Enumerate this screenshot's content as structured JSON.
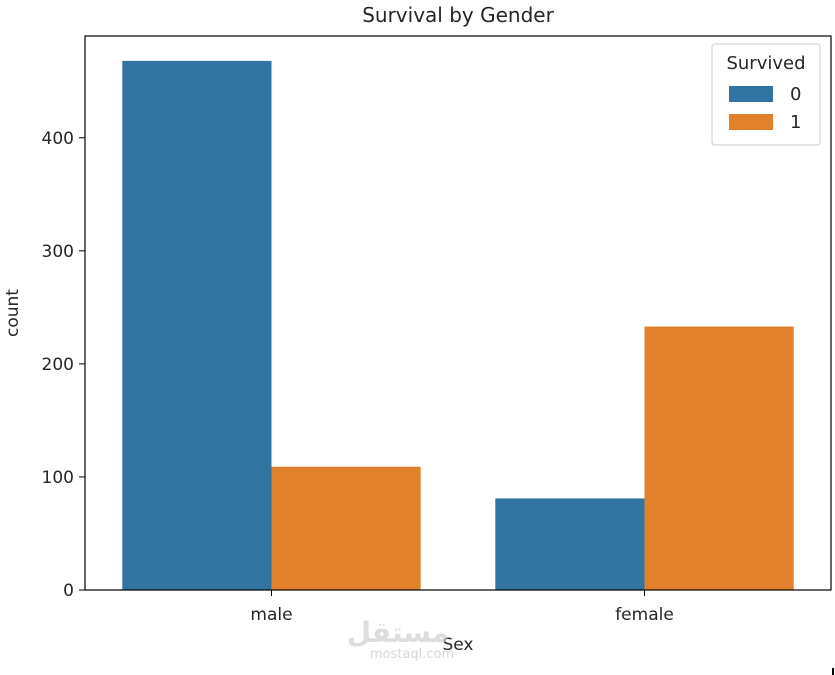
{
  "chart_data": {
    "type": "bar",
    "title": "Survival by Gender",
    "xlabel": "Sex",
    "ylabel": "count",
    "categories": [
      "male",
      "female"
    ],
    "series": [
      {
        "name": "0",
        "values": [
          468,
          81
        ],
        "color": "#3274a1"
      },
      {
        "name": "1",
        "values": [
          109,
          233
        ],
        "color": "#e1812c"
      }
    ],
    "ylim": [
      0,
      490
    ],
    "yticks": [
      0,
      100,
      200,
      300,
      400
    ],
    "legend": {
      "title": "Survived",
      "placement": "top-right"
    },
    "grid": false
  },
  "watermark": {
    "arabic": "مستقل",
    "latin": "mostaql.com"
  }
}
